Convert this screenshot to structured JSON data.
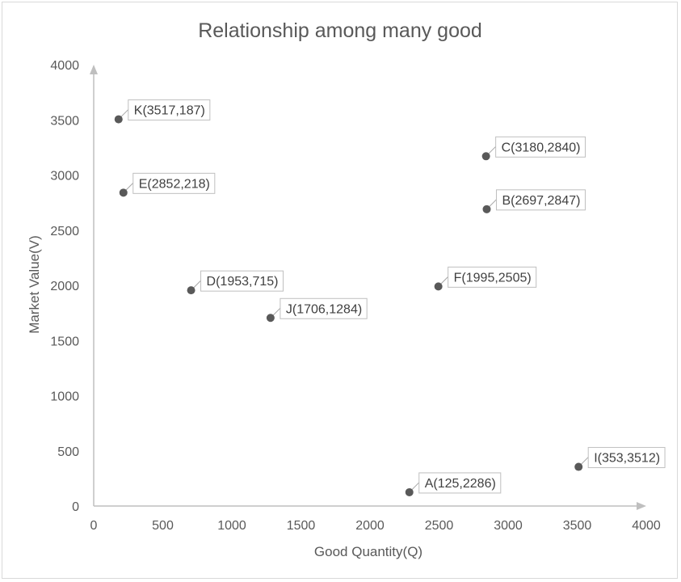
{
  "chart_data": {
    "type": "scatter",
    "title": "Relationship among many good",
    "xlabel": "Good Quantity(Q)",
    "ylabel": "Market Value(V)",
    "xlim": [
      0,
      4000
    ],
    "ylim": [
      0,
      4000
    ],
    "xticks": [
      0,
      500,
      1000,
      1500,
      2000,
      2500,
      3000,
      3500,
      4000
    ],
    "yticks": [
      0,
      500,
      1000,
      1500,
      2000,
      2500,
      3000,
      3500,
      4000
    ],
    "grid": false,
    "point_color": "#595959",
    "axis_color": "#bfbfbf",
    "points": [
      {
        "x": 180,
        "y": 3505,
        "label": "K(3517,187)"
      },
      {
        "x": 215,
        "y": 2840,
        "label": "E(2852,218)"
      },
      {
        "x": 705,
        "y": 1955,
        "label": "D(1953,715)"
      },
      {
        "x": 1280,
        "y": 1705,
        "label": "J(1706,1284)"
      },
      {
        "x": 2495,
        "y": 1990,
        "label": "F(1995,2505)"
      },
      {
        "x": 2840,
        "y": 3170,
        "label": "C(3180,2840)"
      },
      {
        "x": 2845,
        "y": 2690,
        "label": "B(2697,2847)"
      },
      {
        "x": 3510,
        "y": 355,
        "label": "I(353,3512)"
      },
      {
        "x": 2285,
        "y": 125,
        "label": "A(125,2286)"
      }
    ]
  }
}
